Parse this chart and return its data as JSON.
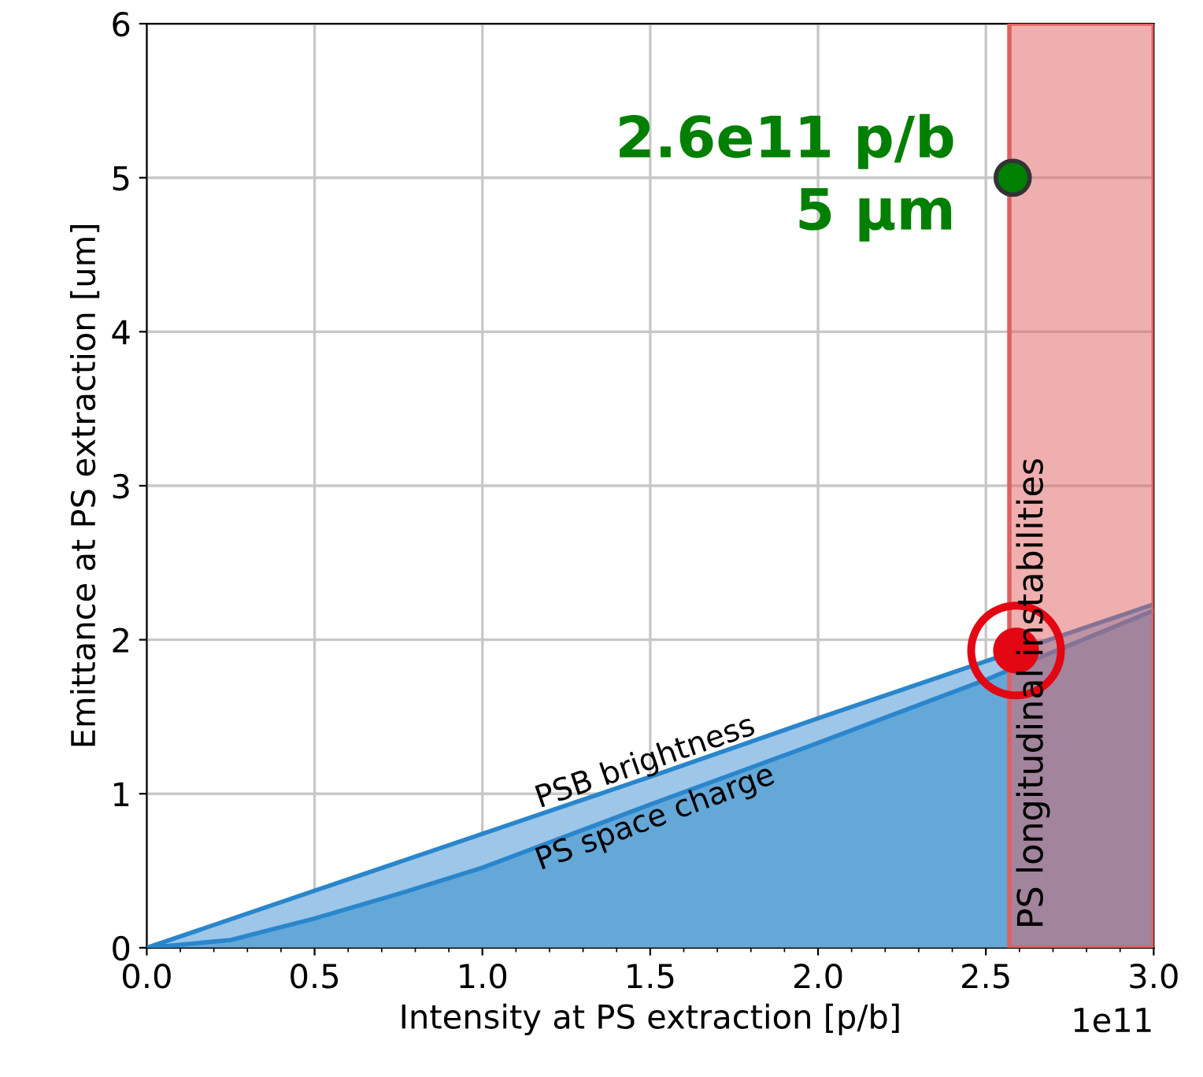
{
  "chart_data": {
    "type": "area",
    "xlabel": "Intensity at PS extraction [p/b]",
    "ylabel": "Emittance at PS extraction [um]",
    "xlim": [
      0,
      3.0
    ],
    "ylim": [
      0,
      6
    ],
    "xticks": [
      {
        "value": 0,
        "label": "0.0"
      },
      {
        "value": 0.5,
        "label": "0.5"
      },
      {
        "value": 1,
        "label": "1.0"
      },
      {
        "value": 1.5,
        "label": "1.5"
      },
      {
        "value": 2,
        "label": "2.0"
      },
      {
        "value": 2.5,
        "label": "2.5"
      },
      {
        "value": 3,
        "label": "3.0"
      }
    ],
    "yticks": [
      0,
      1,
      2,
      3,
      4,
      5,
      6
    ],
    "grid": true,
    "series": [
      {
        "name": "PSB brightness",
        "color": "#9dc6e8",
        "x": [
          0,
          0.5,
          1,
          1.5,
          2,
          2.5,
          3
        ],
        "values": [
          0,
          0.37,
          0.74,
          1.11,
          1.49,
          1.86,
          2.23
        ]
      },
      {
        "name": "PS space charge",
        "color": "#64a8d8",
        "x": [
          0,
          0.25,
          0.5,
          0.75,
          1,
          1.5,
          2,
          2.5,
          3
        ],
        "values": [
          0,
          0.05,
          0.19,
          0.35,
          0.52,
          0.93,
          1.33,
          1.74,
          2.19
        ]
      },
      {
        "type": "scatter",
        "marker": "circle",
        "color": "#007f00",
        "x": [
          2.58
        ],
        "values": [
          5
        ]
      },
      {
        "type": "scatter",
        "marker": "circle",
        "color": "#e30613",
        "x": [
          2.59
        ],
        "values": [
          1.93
        ]
      }
    ],
    "bands": [
      {
        "axis": "x",
        "from": 2.57,
        "to": 3.0,
        "label": "PS longitudinal instabilities",
        "color": "#e06060"
      }
    ],
    "annotations": [
      {
        "text": "2.6e11 p/b\n5 µm",
        "x": 2.58,
        "y": 5
      },
      "1e11"
    ]
  }
}
